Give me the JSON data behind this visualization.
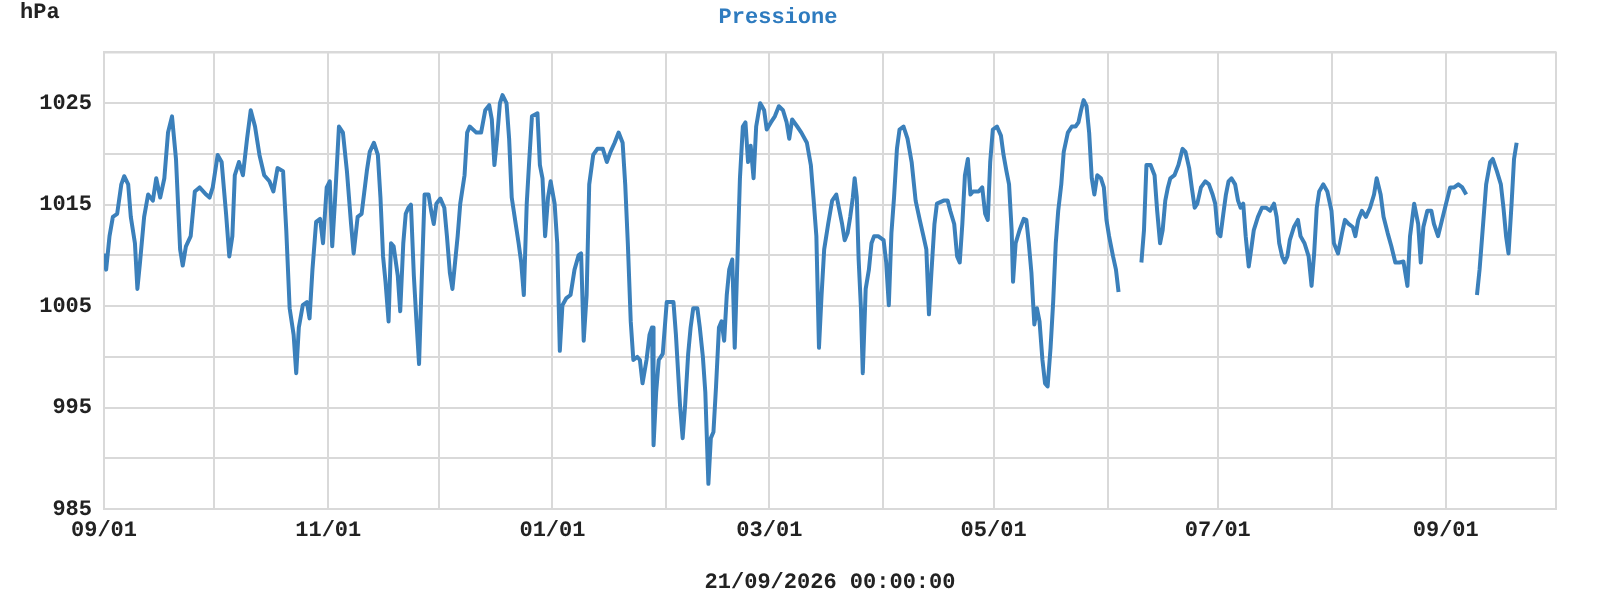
{
  "chart_data": {
    "type": "line",
    "title": "Pressione",
    "ylabel": "hPa",
    "xlabel": "21/09/2026 00:00:00",
    "color": "#3b80bb",
    "grid": true,
    "marker": "none",
    "line_style": "solid",
    "xlim": [
      "2025-09-01",
      "2026-10-01"
    ],
    "xticks": [
      {
        "value": "2025-09-01",
        "label": "09/01"
      },
      {
        "value": "2025-10-01",
        "label": null
      },
      {
        "value": "2025-11-01",
        "label": "11/01"
      },
      {
        "value": "2025-12-01",
        "label": null
      },
      {
        "value": "2026-01-01",
        "label": "01/01"
      },
      {
        "value": "2026-02-01",
        "label": null
      },
      {
        "value": "2026-03-01",
        "label": "03/01"
      },
      {
        "value": "2026-04-01",
        "label": null
      },
      {
        "value": "2026-05-01",
        "label": "05/01"
      },
      {
        "value": "2026-06-01",
        "label": null
      },
      {
        "value": "2026-07-01",
        "label": "07/01"
      },
      {
        "value": "2026-08-01",
        "label": null
      },
      {
        "value": "2026-09-01",
        "label": "09/01"
      },
      {
        "value": "2026-10-01",
        "label": null
      }
    ],
    "ylim": [
      985,
      1030
    ],
    "yticks": [
      985,
      {
        "value": 990,
        "label": null
      },
      995,
      {
        "value": 1000,
        "label": null
      },
      1005,
      {
        "value": 1010,
        "label": null
      },
      1015,
      {
        "value": 1020,
        "label": null
      },
      1025,
      {
        "value": 1030,
        "label": null
      }
    ],
    "x": [
      "2025-09-01T00:00",
      "2025-09-01T14:00",
      "2025-09-02T12:00",
      "2025-09-03T10:00",
      "2025-09-04T14:00",
      "2025-09-05T17:00",
      "2025-09-06T12:00",
      "2025-09-07T14:00",
      "2025-09-08T07:00",
      "2025-09-09T10:00",
      "2025-09-10T02:00",
      "2025-09-10T19:00",
      "2025-09-11T22:00",
      "2025-09-13T00:00",
      "2025-09-14T07:00",
      "2025-09-15T05:00",
      "2025-09-16T07:00",
      "2025-09-17T10:00",
      "2025-09-18T10:00",
      "2025-09-19T12:00",
      "2025-09-20T14:00",
      "2025-09-21T17:00",
      "2025-09-22T10:00",
      "2025-09-23T07:00",
      "2025-09-24T14:00",
      "2025-09-25T17:00",
      "2025-09-27T00:00",
      "2025-09-28T19:00",
      "2025-09-29T17:00",
      "2025-09-30T14:00",
      "2025-10-01T22:00",
      "2025-10-03T00:00",
      "2025-10-04T05:00",
      "2025-10-05T02:00",
      "2025-10-05T22:00",
      "2025-10-06T14:00",
      "2025-10-07T17:00",
      "2025-10-08T19:00",
      "2025-10-09T22:00",
      "2025-10-10T22:00",
      "2025-10-12T02:00",
      "2025-10-13T07:00",
      "2025-10-14T14:00",
      "2025-10-16T00:00",
      "2025-10-17T02:00",
      "2025-10-18T05:00",
      "2025-10-19T17:00",
      "2025-10-20T14:00",
      "2025-10-21T12:00",
      "2025-10-22T14:00",
      "2025-10-23T07:00",
      "2025-10-24T00:00",
      "2025-10-25T02:00",
      "2025-10-26T05:00",
      "2025-10-26T22:00",
      "2025-10-27T17:00",
      "2025-10-28T17:00",
      "2025-10-29T19:00",
      "2025-10-30T14:00",
      "2025-10-31T14:00",
      "2025-11-01T10:00",
      "2025-11-02T02:00",
      "2025-11-02T19:00",
      "2025-11-03T22:00",
      "2025-11-05T00:00",
      "2025-11-06T02:00",
      "2025-11-07T05:00",
      "2025-11-07T22:00",
      "2025-11-09T00:00",
      "2025-11-10T02:00",
      "2025-11-11T12:00",
      "2025-11-12T07:00",
      "2025-11-13T10:00",
      "2025-11-14T12:00",
      "2025-11-15T05:00",
      "2025-11-15T22:00",
      "2025-11-16T14:00",
      "2025-11-17T10:00",
      "2025-11-18T02:00",
      "2025-11-18T19:00",
      "2025-11-19T22:00",
      "2025-11-20T14:00",
      "2025-11-21T10:00",
      "2025-11-22T02:00",
      "2025-11-22T19:00",
      "2025-11-23T12:00",
      "2025-11-24T07:00",
      "2025-11-25T00:00",
      "2025-11-25T17:00",
      "2025-11-26T10:00",
      "2025-11-27T05:00",
      "2025-11-28T07:00",
      "2025-11-29T00:00",
      "2025-11-29T17:00",
      "2025-11-30T10:00",
      "2025-12-01T12:00",
      "2025-12-02T14:00",
      "2025-12-03T07:00",
      "2025-12-04T02:00",
      "2025-12-04T19:00",
      "2025-12-05T12:00",
      "2025-12-06T05:00",
      "2025-12-06T22:00",
      "2025-12-08T02:00",
      "2025-12-08T19:00",
      "2025-12-09T12:00",
      "2025-12-11T07:00",
      "2025-12-12T14:00",
      "2025-12-13T17:00",
      "2025-12-14T19:00",
      "2025-12-15T12:00",
      "2025-12-16T05:00",
      "2025-12-16T22:00",
      "2025-12-17T17:00",
      "2025-12-18T10:00",
      "2025-12-19T12:00",
      "2025-12-20T05:00",
      "2025-12-20T22:00",
      "2025-12-22T00:00",
      "2025-12-22T19:00",
      "2025-12-23T12:00",
      "2025-12-24T05:00",
      "2025-12-25T00:00",
      "2025-12-25T17:00",
      "2025-12-26T10:00",
      "2025-12-27T22:00",
      "2025-12-28T14:00",
      "2025-12-29T07:00",
      "2025-12-30T00:00",
      "2025-12-30T19:00",
      "2025-12-31T12:00",
      "2026-01-01T14:00",
      "2026-01-02T07:00",
      "2026-01-03T00:00",
      "2026-01-03T17:00",
      "2026-01-04T19:00",
      "2026-01-05T22:00",
      "2026-01-07T00:00",
      "2026-01-08T02:00",
      "2026-01-08T19:00",
      "2026-01-09T12:00",
      "2026-01-10T07:00",
      "2026-01-11T00:00",
      "2026-01-12T02:00",
      "2026-01-13T05:00",
      "2026-01-14T17:00",
      "2026-01-15T19:00",
      "2026-01-16T19:00",
      "2026-01-17T22:00",
      "2026-01-19T00:00",
      "2026-01-20T02:00",
      "2026-01-20T19:00",
      "2026-01-21T12:00",
      "2026-01-22T07:00",
      "2026-01-23T00:00",
      "2026-01-24T02:00",
      "2026-01-24T19:00",
      "2026-01-25T12:00",
      "2026-01-26T14:00",
      "2026-01-27T10:00",
      "2026-01-28T02:00",
      "2026-01-28T12:00",
      "2026-01-29T05:00",
      "2026-01-29T22:00",
      "2026-01-31T00:00",
      "2026-02-01T02:00",
      "2026-02-01T19:00",
      "2026-02-02T22:00",
      "2026-02-03T14:00",
      "2026-02-04T17:00",
      "2026-02-05T10:00",
      "2026-02-06T02:00",
      "2026-02-06T22:00",
      "2026-02-07T14:00",
      "2026-02-08T07:00",
      "2026-02-09T10:00",
      "2026-02-10T02:00",
      "2026-02-10T22:00",
      "2026-02-11T14:00",
      "2026-02-12T10:00",
      "2026-02-13T02:00",
      "2026-02-13T19:00",
      "2026-02-14T12:00",
      "2026-02-15T07:00",
      "2026-02-16T00:00",
      "2026-02-16T17:00",
      "2026-02-17T10:00",
      "2026-02-18T02:00",
      "2026-02-18T22:00",
      "2026-02-19T14:00",
      "2026-02-20T07:00",
      "2026-02-21T00:00",
      "2026-02-21T19:00",
      "2026-02-22T12:00",
      "2026-02-23T05:00",
      "2026-02-23T22:00",
      "2026-02-24T17:00",
      "2026-02-25T10:00",
      "2026-02-26T12:00",
      "2026-02-27T14:00",
      "2026-02-28T07:00",
      "2026-03-01T10:00",
      "2026-03-02T12:00",
      "2026-03-03T14:00",
      "2026-03-04T17:00",
      "2026-03-05T17:00",
      "2026-03-06T10:00",
      "2026-03-07T05:00",
      "2026-03-08T14:00",
      "2026-03-09T17:00",
      "2026-03-11T05:00",
      "2026-03-12T07:00",
      "2026-03-13T00:00",
      "2026-03-13T19:00",
      "2026-03-14T12:00",
      "2026-03-15T05:00",
      "2026-03-15T22:00",
      "2026-03-17T00:00",
      "2026-03-18T02:00",
      "2026-03-19T05:00",
      "2026-03-20T19:00",
      "2026-03-21T12:00",
      "2026-03-22T07:00",
      "2026-03-23T00:00",
      "2026-03-23T17:00",
      "2026-03-24T05:00",
      "2026-03-24T19:00",
      "2026-03-25T07:00",
      "2026-03-25T22:00",
      "2026-03-26T10:00",
      "2026-03-27T05:00",
      "2026-03-28T02:00",
      "2026-03-28T19:00",
      "2026-03-29T12:00",
      "2026-03-30T14:00",
      "2026-04-01T02:00",
      "2026-04-01T19:00",
      "2026-04-02T12:00",
      "2026-04-03T05:00",
      "2026-04-03T22:00",
      "2026-04-04T17:00",
      "2026-04-05T10:00",
      "2026-04-06T12:00",
      "2026-04-07T14:00",
      "2026-04-08T17:00",
      "2026-04-09T19:00",
      "2026-04-10T22:00",
      "2026-04-11T22:00",
      "2026-04-12T17:00",
      "2026-04-13T10:00",
      "2026-04-14T02:00",
      "2026-04-14T22:00",
      "2026-04-15T14:00",
      "2026-04-17T10:00",
      "2026-04-18T12:00",
      "2026-04-19T05:00",
      "2026-04-20T07:00",
      "2026-04-21T02:00",
      "2026-04-21T19:00",
      "2026-04-22T12:00",
      "2026-04-23T05:00",
      "2026-04-24T00:00",
      "2026-04-24T17:00",
      "2026-04-25T10:00",
      "2026-04-26T22:00",
      "2026-04-27T22:00",
      "2026-04-28T17:00",
      "2026-04-29T10:00",
      "2026-04-30T02:00",
      "2026-04-30T19:00",
      "2026-05-01T22:00",
      "2026-05-03T00:00",
      "2026-05-03T17:00",
      "2026-05-04T12:00",
      "2026-05-05T05:00",
      "2026-05-05T22:00",
      "2026-05-06T07:00",
      "2026-05-07T00:00",
      "2026-05-08T02:00",
      "2026-05-09T05:00",
      "2026-05-09T22:00",
      "2026-05-10T14:00",
      "2026-05-11T07:00",
      "2026-05-12T02:00",
      "2026-05-12T19:00",
      "2026-05-13T12:00",
      "2026-05-14T07:00",
      "2026-05-15T00:00",
      "2026-05-15T17:00",
      "2026-05-16T12:00",
      "2026-05-17T05:00",
      "2026-05-17T22:00",
      "2026-05-18T14:00",
      "2026-05-19T10:00",
      "2026-05-20T02:00",
      "2026-05-21T05:00",
      "2026-05-22T07:00",
      "2026-05-23T07:00",
      "2026-05-24T02:00",
      "2026-05-24T19:00",
      "2026-05-25T12:00",
      "2026-05-26T07:00",
      "2026-05-27T00:00",
      "2026-05-27T17:00",
      "2026-05-28T10:00",
      "2026-05-29T05:00",
      "2026-05-30T05:00",
      "2026-05-31T00:00",
      "2026-05-31T17:00",
      "2026-06-01T10:00",
      "2026-06-02T12:00",
      "2026-06-03T07:00",
      "2026-06-04T00:00",
      "2026-06-07T00:00",
      "2026-06-10T05:00",
      "2026-06-10T22:00",
      "2026-06-11T14:00",
      "2026-06-12T17:00",
      "2026-06-13T19:00",
      "2026-06-14T12:00",
      "2026-06-15T07:00",
      "2026-06-16T00:00",
      "2026-06-16T17:00",
      "2026-06-17T10:00",
      "2026-06-18T02:00",
      "2026-06-19T05:00",
      "2026-06-20T07:00",
      "2026-06-21T10:00",
      "2026-06-22T05:00",
      "2026-06-23T05:00",
      "2026-06-23T22:00",
      "2026-06-24T17:00",
      "2026-06-25T10:00",
      "2026-06-26T10:00",
      "2026-06-27T14:00",
      "2026-06-28T14:00",
      "2026-06-29T14:00",
      "2026-06-30T07:00",
      "2026-07-01T00:00",
      "2026-07-01T17:00",
      "2026-07-02T12:00",
      "2026-07-03T05:00",
      "2026-07-03T22:00",
      "2026-07-04T17:00",
      "2026-07-05T17:00",
      "2026-07-06T12:00",
      "2026-07-07T05:00",
      "2026-07-07T22:00",
      "2026-07-08T14:00",
      "2026-07-09T10:00",
      "2026-07-10T02:00",
      "2026-07-10T19:00",
      "2026-07-11T22:00",
      "2026-07-13T00:00",
      "2026-07-14T02:00",
      "2026-07-15T05:00",
      "2026-07-16T07:00",
      "2026-07-17T00:00",
      "2026-07-17T17:00",
      "2026-07-18T12:00",
      "2026-07-19T05:00",
      "2026-07-19T22:00",
      "2026-07-20T14:00",
      "2026-07-21T17:00",
      "2026-07-22T19:00",
      "2026-07-23T12:00",
      "2026-07-24T14:00",
      "2026-07-25T17:00",
      "2026-07-26T12:00",
      "2026-07-27T05:00",
      "2026-07-27T22:00",
      "2026-07-28T14:00",
      "2026-07-29T17:00",
      "2026-07-30T19:00",
      "2026-07-31T22:00",
      "2026-08-01T14:00",
      "2026-08-02T17:00",
      "2026-08-03T19:00",
      "2026-08-04T14:00",
      "2026-08-05T14:00",
      "2026-08-06T17:00",
      "2026-08-07T10:00",
      "2026-08-08T05:00",
      "2026-08-09T05:00",
      "2026-08-10T07:00",
      "2026-08-11T10:00",
      "2026-08-12T12:00",
      "2026-08-13T05:00",
      "2026-08-14T07:00",
      "2026-08-15T02:00",
      "2026-08-16T05:00",
      "2026-08-17T05:00",
      "2026-08-18T07:00",
      "2026-08-19T10:00",
      "2026-08-20T12:00",
      "2026-08-21T14:00",
      "2026-08-22T07:00",
      "2026-08-23T10:00",
      "2026-08-24T12:00",
      "2026-08-25T05:00",
      "2026-08-25T22:00",
      "2026-08-27T00:00",
      "2026-08-28T02:00",
      "2026-08-28T19:00",
      "2026-08-29T22:00",
      "2026-08-31T00:00",
      "2026-09-01T02:00",
      "2026-09-02T05:00",
      "2026-09-03T07:00",
      "2026-09-04T10:00",
      "2026-09-05T12:00",
      "2026-09-06T14:00",
      "2026-09-08T00:00",
      "2026-09-09T12:00",
      "2026-09-10T05:00",
      "2026-09-10T22:00",
      "2026-09-12T00:00",
      "2026-09-13T02:00",
      "2026-09-13T19:00",
      "2026-09-14T22:00",
      "2026-09-16T00:00",
      "2026-09-16T17:00",
      "2026-09-17T10:00",
      "2026-09-18T02:00",
      "2026-09-18T22:00",
      "2026-09-19T14:00",
      "2026-09-20T07:00"
    ],
    "values": [
      1010.2,
      1008.6,
      1011.9,
      1013.8,
      1014.1,
      1017.0,
      1017.8,
      1017.0,
      1013.8,
      1011.2,
      1006.7,
      1009.3,
      1013.8,
      1016.0,
      1015.4,
      1017.6,
      1015.7,
      1017.6,
      1022.1,
      1023.7,
      1019.5,
      1010.6,
      1009.0,
      1010.9,
      1011.9,
      1016.3,
      1016.7,
      1016.0,
      1015.7,
      1016.7,
      1019.9,
      1019.2,
      1014.1,
      1009.9,
      1011.9,
      1017.9,
      1019.2,
      1017.9,
      1021.5,
      1024.3,
      1022.7,
      1019.9,
      1017.9,
      1017.3,
      1016.3,
      1018.6,
      1018.3,
      1012.5,
      1004.8,
      1002.2,
      998.4,
      1002.9,
      1005.1,
      1005.4,
      1003.8,
      1008.6,
      1013.3,
      1013.6,
      1011.2,
      1016.7,
      1017.3,
      1010.9,
      1015.1,
      1022.7,
      1022.1,
      1018.3,
      1013.1,
      1010.2,
      1013.8,
      1014.1,
      1018.3,
      1020.2,
      1021.1,
      1019.9,
      1015.7,
      1009.9,
      1007.4,
      1003.5,
      1011.2,
      1010.9,
      1008.0,
      1004.5,
      1011.2,
      1014.1,
      1014.7,
      1015.0,
      1008.0,
      1003.5,
      999.3,
      1007.4,
      1016.0,
      1016.0,
      1014.4,
      1013.1,
      1015.1,
      1015.6,
      1014.7,
      1011.9,
      1008.3,
      1006.7,
      1009.3,
      1011.9,
      1015.1,
      1017.9,
      1022.1,
      1022.7,
      1022.1,
      1022.1,
      1024.3,
      1024.8,
      1023.4,
      1018.9,
      1021.5,
      1025.0,
      1025.8,
      1025.0,
      1021.5,
      1015.7,
      1013.1,
      1011.2,
      1009.3,
      1006.1,
      1015.1,
      1019.5,
      1023.7,
      1024.0,
      1018.9,
      1017.6,
      1011.9,
      1015.7,
      1017.3,
      1015.1,
      1011.2,
      1000.6,
      1005.1,
      1005.8,
      1006.1,
      1008.6,
      1010.0,
      1010.2,
      1001.6,
      1006.1,
      1017.0,
      1019.9,
      1020.5,
      1020.5,
      1019.2,
      1020.2,
      1021.1,
      1022.1,
      1021.1,
      1017.0,
      1011.2,
      1003.5,
      999.7,
      1000.0,
      999.7,
      997.4,
      999.7,
      1002.2,
      1002.9,
      991.3,
      996.5,
      999.7,
      1000.3,
      1005.4,
      1005.4,
      1005.4,
      1002.2,
      995.2,
      992.0,
      995.2,
      1000.3,
      1002.9,
      1004.8,
      1004.8,
      1002.9,
      1000.0,
      996.5,
      987.5,
      992.0,
      992.6,
      997.1,
      1002.9,
      1003.5,
      1001.6,
      1006.1,
      1008.6,
      1009.6,
      1000.9,
      1009.3,
      1017.6,
      1022.7,
      1023.1,
      1019.2,
      1020.8,
      1017.6,
      1022.7,
      1025.0,
      1024.3,
      1022.4,
      1023.1,
      1023.7,
      1024.7,
      1024.3,
      1023.1,
      1021.5,
      1023.4,
      1022.7,
      1022.1,
      1021.1,
      1018.9,
      1015.7,
      1011.9,
      1000.9,
      1006.1,
      1010.6,
      1013.1,
      1015.4,
      1016.0,
      1013.1,
      1011.5,
      1012.2,
      1013.8,
      1015.7,
      1017.6,
      1015.7,
      1009.6,
      1004.8,
      998.4,
      1006.7,
      1008.6,
      1011.2,
      1011.9,
      1011.9,
      1011.5,
      1009.3,
      1005.1,
      1012.2,
      1015.7,
      1020.5,
      1022.4,
      1022.7,
      1021.5,
      1019.2,
      1015.4,
      1013.5,
      1011.9,
      1010.6,
      1004.2,
      1008.3,
      1013.1,
      1015.1,
      1015.4,
      1015.4,
      1014.4,
      1013.1,
      1009.9,
      1009.3,
      1013.1,
      1017.9,
      1019.5,
      1016.0,
      1016.3,
      1016.3,
      1016.7,
      1014.1,
      1013.5,
      1019.2,
      1022.4,
      1022.7,
      1021.8,
      1019.9,
      1018.3,
      1017.0,
      1012.5,
      1007.4,
      1011.2,
      1012.5,
      1013.6,
      1013.5,
      1011.2,
      1008.3,
      1003.2,
      1004.8,
      1003.5,
      999.7,
      997.4,
      997.1,
      1000.9,
      1005.4,
      1011.2,
      1014.4,
      1017.0,
      1020.2,
      1022.1,
      1022.7,
      1022.7,
      1023.1,
      1024.3,
      1025.3,
      1024.7,
      1022.1,
      1017.6,
      1016.0,
      1017.9,
      1017.6,
      1016.7,
      1013.5,
      1011.9,
      1009.9,
      1008.6,
      1006.4,
      null,
      1009.3,
      1012.5,
      1018.9,
      1018.9,
      1017.9,
      1014.4,
      1011.2,
      1012.5,
      1015.4,
      1016.7,
      1017.6,
      1017.9,
      1018.9,
      1020.5,
      1020.2,
      1018.6,
      1016.7,
      1014.7,
      1015.1,
      1016.7,
      1017.3,
      1017.0,
      1016.0,
      1015.1,
      1012.2,
      1011.9,
      1014.1,
      1016.0,
      1017.3,
      1017.6,
      1017.0,
      1015.4,
      1014.7,
      1015.1,
      1011.9,
      1008.9,
      1010.6,
      1012.5,
      1013.8,
      1014.7,
      1014.7,
      1014.4,
      1015.1,
      1013.8,
      1011.2,
      1009.9,
      1009.3,
      1009.9,
      1011.5,
      1012.8,
      1013.5,
      1011.9,
      1011.2,
      1009.9,
      1007.0,
      1010.2,
      1014.7,
      1016.3,
      1017.0,
      1016.3,
      1014.4,
      1011.2,
      1010.2,
      1012.2,
      1013.5,
      1013.1,
      1012.8,
      1011.9,
      1013.5,
      1014.4,
      1013.8,
      1014.7,
      1016.0,
      1017.6,
      1016.0,
      1013.8,
      1012.2,
      1010.9,
      1009.3,
      1009.3,
      1009.4,
      1007.0,
      1011.9,
      1015.1,
      1013.1,
      1009.3,
      1012.8,
      1014.4,
      1014.4,
      1013.1,
      1011.9,
      1013.5,
      1015.1,
      1016.7,
      1016.7,
      1017.0,
      1016.7,
      1016.0,
      null,
      1006.1,
      1008.6,
      1011.9,
      1017.0,
      1019.2,
      1019.5,
      1018.3,
      1017.0,
      1014.7,
      1011.9,
      1010.2,
      1015.1,
      1019.5,
      1021.1
    ]
  }
}
